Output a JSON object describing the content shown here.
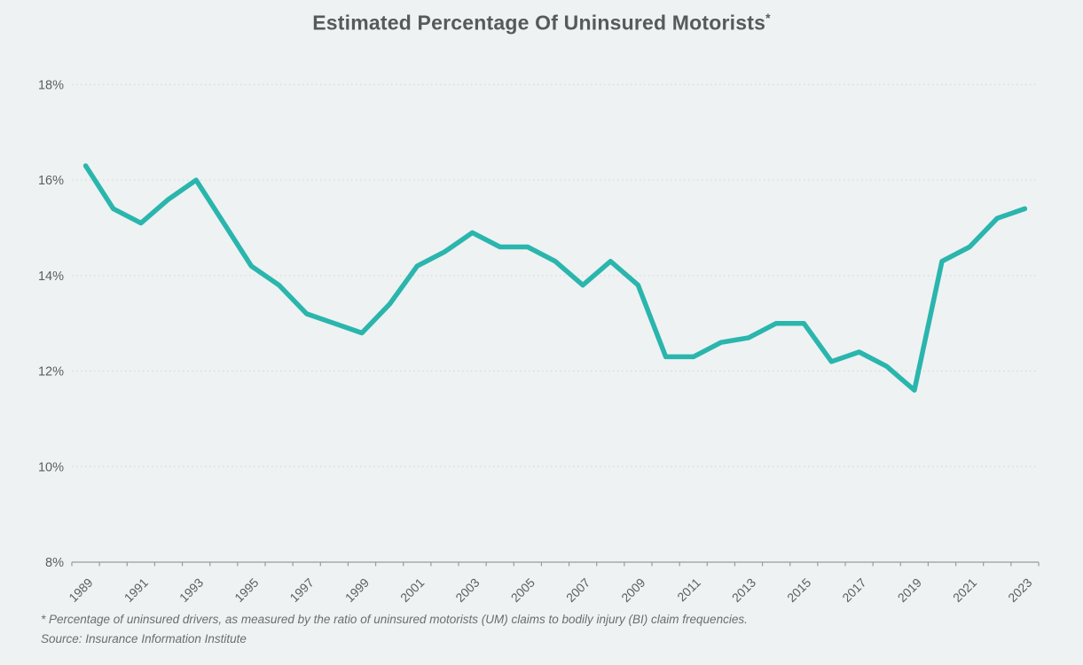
{
  "title": {
    "text": "Estimated Percentage Of Uninsured Motorists",
    "superscript": "*"
  },
  "footnote": {
    "line1": "* Percentage of uninsured drivers, as measured by the ratio of uninsured motorists (UM) claims to bodily injury (BI) claim frequencies.",
    "line2": "Source: Insurance Information Institute"
  },
  "colors": {
    "background": "#eef2f2",
    "line": "#2ab5ad",
    "grid": "#d0d6d6",
    "axis": "#969b9b",
    "tick_text": "#5a5f61",
    "title_text": "#555a5d",
    "footnote_text": "#696e70"
  },
  "chart_data": {
    "type": "line",
    "title": "Estimated Percentage Of Uninsured Motorists*",
    "series_name": "Estimated percentage of uninsured motorists",
    "x": [
      1989,
      1990,
      1991,
      1992,
      1993,
      1994,
      1995,
      1996,
      1997,
      1998,
      1999,
      2000,
      2001,
      2002,
      2003,
      2004,
      2005,
      2006,
      2007,
      2008,
      2009,
      2010,
      2011,
      2012,
      2013,
      2014,
      2015,
      2016,
      2017,
      2018,
      2019,
      2020,
      2021,
      2022,
      2023
    ],
    "values": [
      16.3,
      15.4,
      15.1,
      15.6,
      16.0,
      15.1,
      14.2,
      13.8,
      13.2,
      13.0,
      12.8,
      13.4,
      14.2,
      14.5,
      14.9,
      14.6,
      14.6,
      14.3,
      13.8,
      14.3,
      13.8,
      12.3,
      12.3,
      12.6,
      12.7,
      13.0,
      13.0,
      12.2,
      12.4,
      12.1,
      11.6,
      14.3,
      14.6,
      15.2,
      15.4
    ],
    "ylim": [
      8,
      18
    ],
    "yticks": [
      8,
      10,
      12,
      14,
      16,
      18
    ],
    "ytick_labels": [
      "8%",
      "10%",
      "12%",
      "14%",
      "16%",
      "18%"
    ],
    "xtick_labels": [
      "1989",
      "1991",
      "1993",
      "1995",
      "1997",
      "1999",
      "2001",
      "2003",
      "2005",
      "2007",
      "2009",
      "2011",
      "2013",
      "2015",
      "2017",
      "2019",
      "2021",
      "2023"
    ],
    "xlabel": "",
    "ylabel": "",
    "grid": "horizontal-dotted",
    "legend": "none",
    "line_color": "#2ab5ad"
  }
}
